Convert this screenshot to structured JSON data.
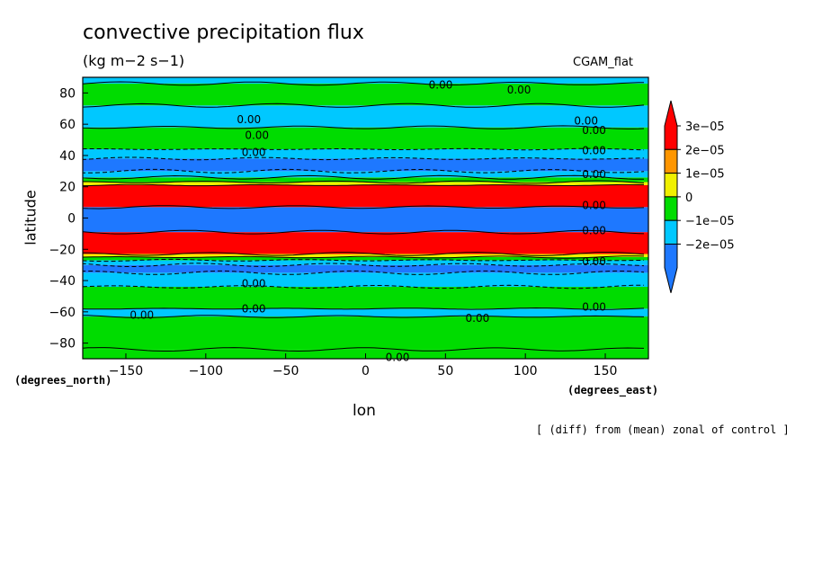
{
  "chart_data": {
    "type": "heatmap",
    "title": "convective precipitation flux",
    "units": "(kg m−2 s−1)",
    "run_label": "CGAM_flat",
    "xlabel": "lon",
    "ylabel": "latitude",
    "x_unit": "(degrees_east)",
    "y_unit": "(degrees_north)",
    "note": "[ (diff) from (mean) zonal of control ]",
    "xlim": [
      -177,
      177
    ],
    "ylim": [
      -90,
      90
    ],
    "x_ticks": [
      -150,
      -100,
      -50,
      0,
      50,
      100,
      150
    ],
    "x_tick_labels": [
      "−150",
      "−100",
      "−50",
      "0",
      "50",
      "100",
      "150"
    ],
    "y_ticks": [
      -80,
      -60,
      -40,
      -20,
      0,
      20,
      40,
      60,
      80
    ],
    "y_tick_labels": [
      "−80",
      "−60",
      "−40",
      "−20",
      "0",
      "20",
      "40",
      "60",
      "80"
    ],
    "levels": [
      -3e-05,
      -2e-05,
      -1e-05,
      0,
      1e-05,
      2e-05,
      3e-05
    ],
    "colorbar_labels": [
      "3e−05",
      "2e−05",
      "1e−05",
      "0",
      "−1e−05",
      "−2e−05"
    ],
    "colors": [
      "#1e78ff",
      "#00c8ff",
      "#00dc00",
      "#f0f000",
      "#ff9600",
      "#ff0000"
    ],
    "bands": [
      {
        "lat0": -90,
        "lat1": -84,
        "class": 2
      },
      {
        "lat0": -84,
        "lat1": -63,
        "class": 2
      },
      {
        "lat0": -63,
        "lat1": -58,
        "class": 1
      },
      {
        "lat0": -58,
        "lat1": -44,
        "class": 2
      },
      {
        "lat0": -44,
        "lat1": -35,
        "class": 1
      },
      {
        "lat0": -35,
        "lat1": -30,
        "class": 0
      },
      {
        "lat0": -30,
        "lat1": -27,
        "class": 1
      },
      {
        "lat0": -27,
        "lat1": -25,
        "class": 2
      },
      {
        "lat0": -25,
        "lat1": -23,
        "class": 3
      },
      {
        "lat0": -23,
        "lat1": -9,
        "class": 5
      },
      {
        "lat0": -9,
        "lat1": 7,
        "class": 0
      },
      {
        "lat0": 7,
        "lat1": 21,
        "class": 5
      },
      {
        "lat0": 21,
        "lat1": 23,
        "class": 3
      },
      {
        "lat0": 23,
        "lat1": 26,
        "class": 2
      },
      {
        "lat0": 26,
        "lat1": 30,
        "class": 1
      },
      {
        "lat0": 30,
        "lat1": 38,
        "class": 0
      },
      {
        "lat0": 38,
        "lat1": 44,
        "class": 1
      },
      {
        "lat0": 44,
        "lat1": 58,
        "class": 2
      },
      {
        "lat0": 58,
        "lat1": 72,
        "class": 1
      },
      {
        "lat0": 72,
        "lat1": 86,
        "class": 2
      },
      {
        "lat0": 86,
        "lat1": 90,
        "class": 1
      }
    ],
    "contour_labels": [
      {
        "text": "0.00",
        "lon": -73,
        "lat": 63
      },
      {
        "text": "0.00",
        "lon": -68,
        "lat": 53
      },
      {
        "text": "0.00",
        "lon": -70,
        "lat": 42
      },
      {
        "text": "0.00",
        "lon": 47,
        "lat": 85
      },
      {
        "text": "0.00",
        "lon": 96,
        "lat": 82
      },
      {
        "text": "0.00",
        "lon": 138,
        "lat": 62
      },
      {
        "text": "0.00",
        "lon": 143,
        "lat": 56
      },
      {
        "text": "0.00",
        "lon": 143,
        "lat": 43
      },
      {
        "text": "0.00",
        "lon": 143,
        "lat": 28
      },
      {
        "text": "0.00",
        "lon": 143,
        "lat": 8
      },
      {
        "text": "0.00",
        "lon": 143,
        "lat": -8
      },
      {
        "text": "0.00",
        "lon": 143,
        "lat": -28
      },
      {
        "text": "0.00",
        "lon": 143,
        "lat": -57
      },
      {
        "text": "0.00",
        "lon": -140,
        "lat": -62
      },
      {
        "text": "0.00",
        "lon": -70,
        "lat": -58
      },
      {
        "text": "0.00",
        "lon": -70,
        "lat": -42
      },
      {
        "text": "0.00",
        "lon": 70,
        "lat": -64
      },
      {
        "text": "0.00",
        "lon": 20,
        "lat": -89
      }
    ]
  }
}
